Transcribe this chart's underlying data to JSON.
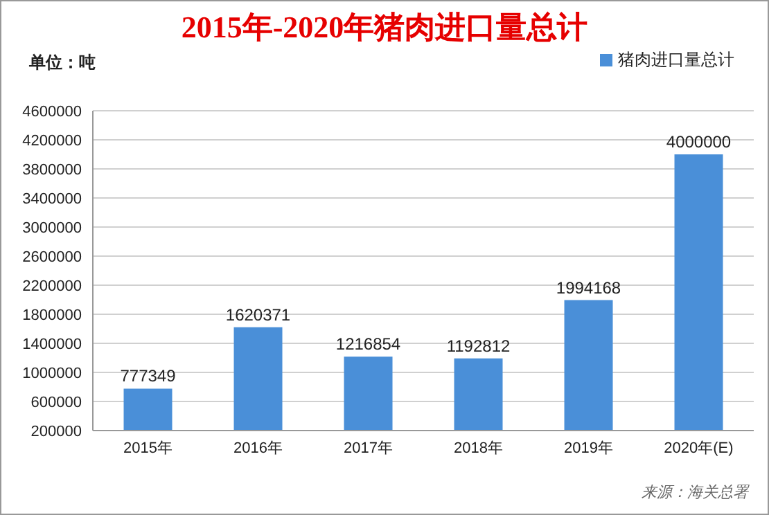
{
  "chart_data": {
    "type": "bar",
    "title": "2015年-2020年猪肉进口量总计",
    "ylabel": "单位：吨",
    "categories": [
      "2015年",
      "2016年",
      "2017年",
      "2018年",
      "2019年",
      "2020年(E)"
    ],
    "series": [
      {
        "name": "猪肉进口量总计",
        "color": "#4a8fd8",
        "values": [
          777349,
          1620371,
          1216854,
          1192812,
          1994168,
          4000000
        ]
      }
    ],
    "ylim": [
      200000,
      4600000
    ],
    "yticks": [
      200000,
      600000,
      1000000,
      1400000,
      1800000,
      2200000,
      2600000,
      3000000,
      3400000,
      3800000,
      4200000,
      4600000
    ],
    "grid": "y",
    "legend": "top right",
    "data_labels": true,
    "annotations": [
      "来源：海关总署"
    ]
  }
}
